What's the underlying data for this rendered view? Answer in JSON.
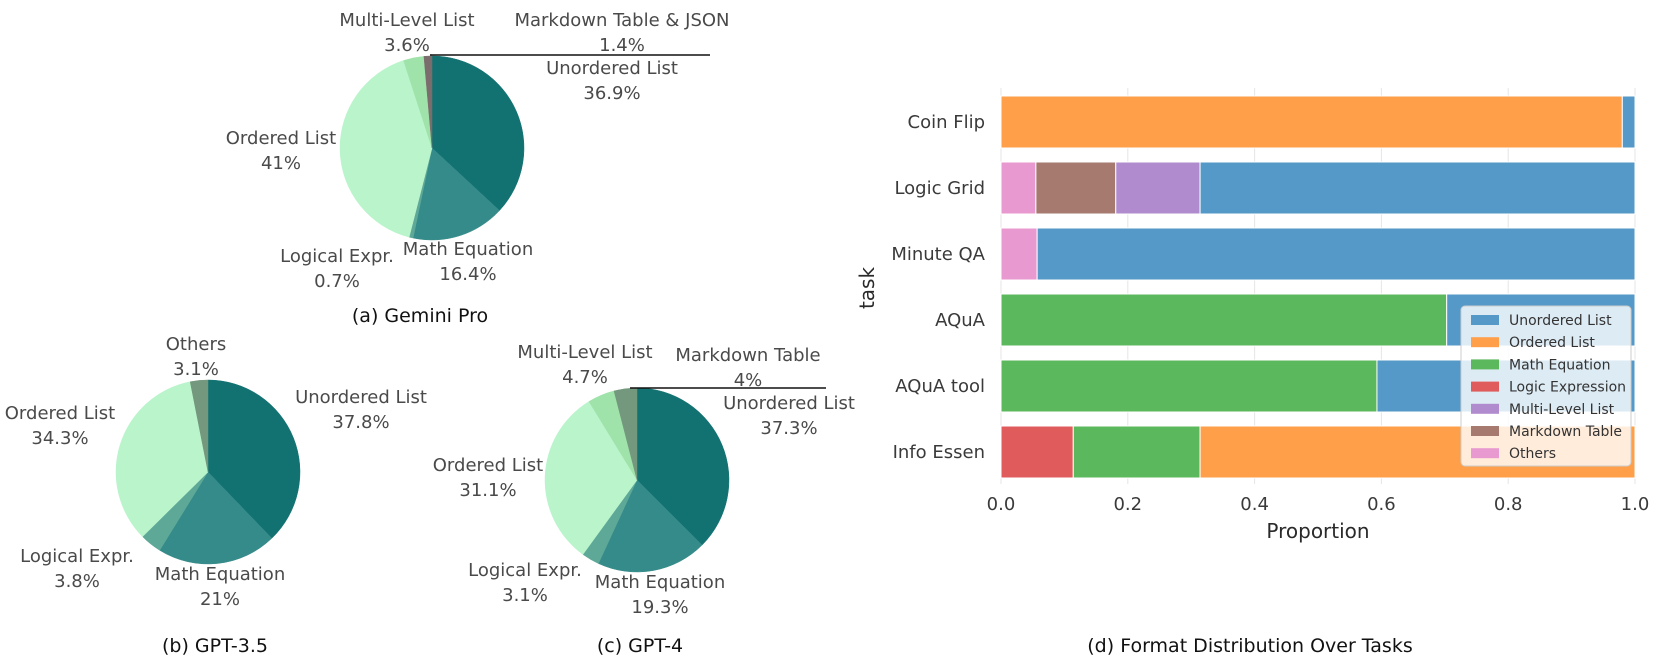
{
  "chart_data": [
    {
      "type": "pie",
      "id": "gemini",
      "caption": "(a) Gemini Pro",
      "slices": [
        {
          "label": "Unordered List",
          "value": 36.9,
          "pct_text": "36.9%",
          "color": "#127171"
        },
        {
          "label": "Math Equation",
          "value": 16.4,
          "pct_text": "16.4%",
          "color": "#358b89"
        },
        {
          "label": "Logical Expr.",
          "value": 0.7,
          "pct_text": "0.7%",
          "color": "#5ea897"
        },
        {
          "label": "Ordered List",
          "value": 41,
          "pct_text": "41%",
          "color": "#b9f4cb"
        },
        {
          "label": "Multi-Level List",
          "value": 3.6,
          "pct_text": "3.6%",
          "color": "#9fe3aa"
        },
        {
          "label": "Markdown Table & JSON",
          "value": 1.4,
          "pct_text": "1.4%",
          "color": "#7b6d6d"
        }
      ]
    },
    {
      "type": "pie",
      "id": "gpt35",
      "caption": "(b) GPT-3.5",
      "slices": [
        {
          "label": "Unordered List",
          "value": 37.8,
          "pct_text": "37.8%",
          "color": "#127171"
        },
        {
          "label": "Math Equation",
          "value": 21,
          "pct_text": "21%",
          "color": "#358b89"
        },
        {
          "label": "Logical Expr.",
          "value": 3.8,
          "pct_text": "3.8%",
          "color": "#5ea897"
        },
        {
          "label": "Ordered List",
          "value": 34.3,
          "pct_text": "34.3%",
          "color": "#b9f4cb"
        },
        {
          "label": "Others",
          "value": 3.1,
          "pct_text": "3.1%",
          "color": "#74987d"
        }
      ]
    },
    {
      "type": "pie",
      "id": "gpt4",
      "caption": "(c) GPT-4",
      "slices": [
        {
          "label": "Unordered List",
          "value": 37.3,
          "pct_text": "37.3%",
          "color": "#127171"
        },
        {
          "label": "Math Equation",
          "value": 19.3,
          "pct_text": "19.3%",
          "color": "#358b89"
        },
        {
          "label": "Logical Expr.",
          "value": 3.1,
          "pct_text": "3.1%",
          "color": "#5ea897"
        },
        {
          "label": "Ordered List",
          "value": 31.1,
          "pct_text": "31.1%",
          "color": "#b9f4cb"
        },
        {
          "label": "Multi-Level List",
          "value": 4.7,
          "pct_text": "4.7%",
          "color": "#9fe3aa"
        },
        {
          "label": "Markdown Table",
          "value": 4,
          "pct_text": "4%",
          "color": "#74987d"
        }
      ]
    },
    {
      "type": "bar",
      "orientation": "horizontal",
      "stacked": true,
      "id": "tasks",
      "caption": "(d) Format Distribution Over Tasks",
      "xlabel": "Proportion",
      "ylabel": "task",
      "xlim": [
        0,
        1
      ],
      "xticks": [
        "0.0",
        "0.2",
        "0.4",
        "0.6",
        "0.8",
        "1.0"
      ],
      "categories": [
        "Coin Flip",
        "Logic Grid",
        "Minute QA",
        "AQuA",
        "AQuA tool",
        "Info Essen"
      ],
      "legend_position": "lower-right",
      "series": [
        {
          "name": "Unordered List",
          "color": "#5499c7",
          "values": [
            0.02,
            0.686,
            0.943,
            0.297,
            0.407,
            0.0
          ]
        },
        {
          "name": "Ordered List",
          "color": "#ff9f4a",
          "values": [
            0.98,
            0.0,
            0.0,
            0.0,
            0.0,
            0.686
          ]
        },
        {
          "name": "Math Equation",
          "color": "#5cb85c",
          "values": [
            0.0,
            0.0,
            0.0,
            0.703,
            0.593,
            0.2
          ]
        },
        {
          "name": "Logic Expression",
          "color": "#e05c5c",
          "values": [
            0.0,
            0.0,
            0.0,
            0.0,
            0.0,
            0.114
          ]
        },
        {
          "name": "Multi-Level List",
          "color": "#b08ccf",
          "values": [
            0.0,
            0.133,
            0.0,
            0.0,
            0.0,
            0.0
          ]
        },
        {
          "name": "Markdown Table",
          "color": "#a67a6f",
          "values": [
            0.0,
            0.126,
            0.0,
            0.0,
            0.0,
            0.0
          ]
        },
        {
          "name": "Others",
          "color": "#e89ad0",
          "values": [
            0.0,
            0.055,
            0.057,
            0.0,
            0.0,
            0.0
          ]
        }
      ],
      "stack_order": [
        [
          "Ordered List",
          "Unordered List"
        ],
        [
          "Others",
          "Markdown Table",
          "Multi-Level List",
          "Unordered List"
        ],
        [
          "Others",
          "Unordered List"
        ],
        [
          "Math Equation",
          "Unordered List"
        ],
        [
          "Math Equation",
          "Unordered List"
        ],
        [
          "Logic Expression",
          "Math Equation",
          "Ordered List"
        ]
      ]
    }
  ]
}
